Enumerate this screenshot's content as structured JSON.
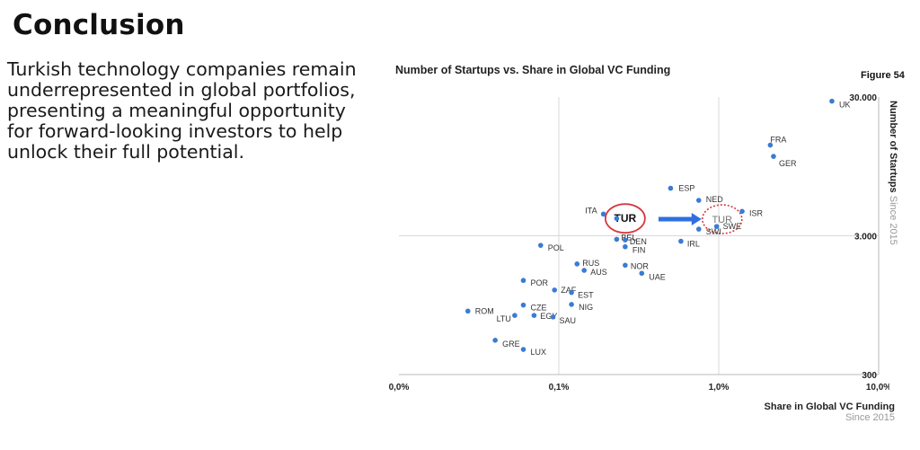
{
  "slide": {
    "title": "Conclusion",
    "body": "Turkish technology companies remain underrepresented in global portfolios, presenting a meaningful opportunity for forward-looking investors to help unlock their full potential."
  },
  "figure_label": "Figure 54",
  "chart_data": {
    "type": "scatter",
    "title": "Number of Startups vs. Share in Global VC Funding",
    "xlabel": "Share in Global VC Funding",
    "xlabel_sub": "Since 2015",
    "ylabel": "Number of Startups",
    "ylabel_sub": "Since 2015",
    "x_scale": "log",
    "y_scale": "log",
    "x_ticks": [
      {
        "value": 0.01,
        "label": "0,0%"
      },
      {
        "value": 0.1,
        "label": "0,1%"
      },
      {
        "value": 1.0,
        "label": "1,0%"
      },
      {
        "value": 10.0,
        "label": "10,0%"
      }
    ],
    "y_ticks": [
      {
        "value": 300,
        "label": "300"
      },
      {
        "value": 3000,
        "label": "3.000"
      },
      {
        "value": 30000,
        "label": "30.000"
      }
    ],
    "xlim": [
      0.01,
      10.0
    ],
    "ylim": [
      300,
      30000
    ],
    "grid": true,
    "point_color": "#3a7bd5",
    "points": [
      {
        "label": "UK",
        "x": 5.1,
        "y": 28000
      },
      {
        "label": "FRA",
        "x": 2.1,
        "y": 13500
      },
      {
        "label": "GER",
        "x": 2.2,
        "y": 11200
      },
      {
        "label": "ESP",
        "x": 0.5,
        "y": 6600
      },
      {
        "label": "NED",
        "x": 0.75,
        "y": 5400
      },
      {
        "label": "ISR",
        "x": 1.4,
        "y": 4500
      },
      {
        "label": "ITA",
        "x": 0.19,
        "y": 4300
      },
      {
        "label": "TUR",
        "x": 0.23,
        "y": 4000
      },
      {
        "label": "SWI",
        "x": 0.75,
        "y": 3350
      },
      {
        "label": "SWE",
        "x": 0.97,
        "y": 3500
      },
      {
        "label": "BEL",
        "x": 0.23,
        "y": 2830
      },
      {
        "label": "DEN",
        "x": 0.26,
        "y": 2800
      },
      {
        "label": "FIN",
        "x": 0.26,
        "y": 2500
      },
      {
        "label": "IRL",
        "x": 0.58,
        "y": 2740
      },
      {
        "label": "POL",
        "x": 0.077,
        "y": 2560
      },
      {
        "label": "RUS",
        "x": 0.13,
        "y": 1880
      },
      {
        "label": "AUS",
        "x": 0.144,
        "y": 1690
      },
      {
        "label": "NOR",
        "x": 0.26,
        "y": 1840
      },
      {
        "label": "UAE",
        "x": 0.33,
        "y": 1610
      },
      {
        "label": "POR",
        "x": 0.06,
        "y": 1430
      },
      {
        "label": "ZAF",
        "x": 0.094,
        "y": 1220
      },
      {
        "label": "EST",
        "x": 0.12,
        "y": 1170
      },
      {
        "label": "CZE",
        "x": 0.06,
        "y": 950
      },
      {
        "label": "NIG",
        "x": 0.12,
        "y": 960
      },
      {
        "label": "ROM",
        "x": 0.027,
        "y": 860
      },
      {
        "label": "LTU",
        "x": 0.053,
        "y": 800
      },
      {
        "label": "EGY",
        "x": 0.07,
        "y": 800
      },
      {
        "label": "SAU",
        "x": 0.092,
        "y": 780
      },
      {
        "label": "GRE",
        "x": 0.04,
        "y": 530
      },
      {
        "label": "LUX",
        "x": 0.06,
        "y": 455
      }
    ],
    "annotations": [
      {
        "label": "TUR",
        "style": "solid-circle",
        "color": "#d9363e",
        "x": 0.26,
        "y": 4000
      },
      {
        "label": "TUR",
        "style": "dotted-circle",
        "color": "#d9363e",
        "x": 1.05,
        "y": 3950
      },
      {
        "style": "arrow",
        "color": "#2f6fe0",
        "x_from": 0.42,
        "x_to": 0.78,
        "y": 3950
      }
    ]
  }
}
